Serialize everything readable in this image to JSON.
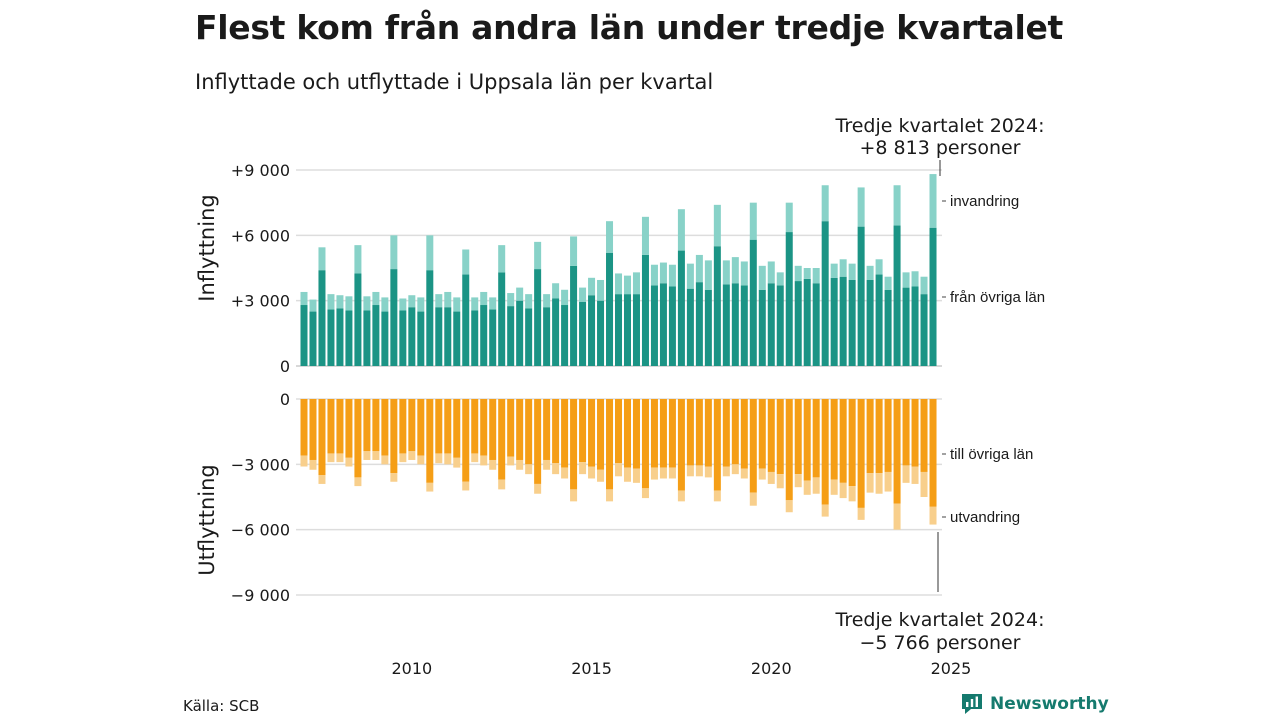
{
  "header": {
    "title": "Flest kom från andra län under tredje kvartalet",
    "subtitle": "Inflyttade och utflyttade i Uppsala län per kvartal"
  },
  "footer": {
    "source": "Källa: SCB",
    "brand": "Newsworthy"
  },
  "colors": {
    "in_domestic": "#1b9485",
    "in_immigration": "#88d2c8",
    "out_domestic": "#f59e16",
    "out_emigration": "#f8cf8c",
    "grid": "#dddddd",
    "brand": "#157a6e"
  },
  "chart_data": {
    "type": "bar",
    "stacked": true,
    "grid": true,
    "x_axis": {
      "ticks": [
        "2010",
        "2015",
        "2020",
        "2025"
      ],
      "range": [
        "2007 Q1",
        "2024 Q3"
      ]
    },
    "top_panel": {
      "ylabel": "Inflyttning",
      "ylim": [
        0,
        9000
      ],
      "yticks": [
        {
          "value": 0,
          "label": "0"
        },
        {
          "value": 3000,
          "label": "+3 000"
        },
        {
          "value": 6000,
          "label": "+6 000"
        },
        {
          "value": 9000,
          "label": "+9 000"
        }
      ],
      "series_labels": [
        "från övriga län",
        "invandring"
      ]
    },
    "bottom_panel": {
      "ylabel": "Utflyttning",
      "ylim": [
        -9000,
        0
      ],
      "yticks": [
        {
          "value": 0,
          "label": "0"
        },
        {
          "value": -3000,
          "label": "−3 000"
        },
        {
          "value": -6000,
          "label": "−6 000"
        },
        {
          "value": -9000,
          "label": "−9 000"
        }
      ],
      "series_labels": [
        "till övriga län",
        "utvandring"
      ]
    },
    "annotations": {
      "top_line1": "Tredje kvartalet 2024:",
      "top_line2": "+8 813 personer",
      "bottom_line1": "Tredje kvartalet 2024:",
      "bottom_line2": "−5 766 personer"
    },
    "quarters": [
      "2007 Q1",
      "2007 Q2",
      "2007 Q3",
      "2007 Q4",
      "2008 Q1",
      "2008 Q2",
      "2008 Q3",
      "2008 Q4",
      "2009 Q1",
      "2009 Q2",
      "2009 Q3",
      "2009 Q4",
      "2010 Q1",
      "2010 Q2",
      "2010 Q3",
      "2010 Q4",
      "2011 Q1",
      "2011 Q2",
      "2011 Q3",
      "2011 Q4",
      "2012 Q1",
      "2012 Q2",
      "2012 Q3",
      "2012 Q4",
      "2013 Q1",
      "2013 Q2",
      "2013 Q3",
      "2013 Q4",
      "2014 Q1",
      "2014 Q2",
      "2014 Q3",
      "2014 Q4",
      "2015 Q1",
      "2015 Q2",
      "2015 Q3",
      "2015 Q4",
      "2016 Q1",
      "2016 Q2",
      "2016 Q3",
      "2016 Q4",
      "2017 Q1",
      "2017 Q2",
      "2017 Q3",
      "2017 Q4",
      "2018 Q1",
      "2018 Q2",
      "2018 Q3",
      "2018 Q4",
      "2019 Q1",
      "2019 Q2",
      "2019 Q3",
      "2019 Q4",
      "2020 Q1",
      "2020 Q2",
      "2020 Q3",
      "2020 Q4",
      "2021 Q1",
      "2021 Q2",
      "2021 Q3",
      "2021 Q4",
      "2022 Q1",
      "2022 Q2",
      "2022 Q3",
      "2022 Q4",
      "2023 Q1",
      "2023 Q2",
      "2023 Q3",
      "2023 Q4",
      "2024 Q1",
      "2024 Q2",
      "2024 Q3"
    ],
    "series": [
      {
        "name": "från övriga län",
        "values": [
          2800,
          2500,
          4400,
          2600,
          2650,
          2550,
          4250,
          2550,
          2800,
          2500,
          4450,
          2550,
          2700,
          2500,
          4400,
          2700,
          2700,
          2500,
          4200,
          2550,
          2800,
          2600,
          4300,
          2750,
          3000,
          2650,
          4450,
          2700,
          3100,
          2800,
          4600,
          2950,
          3250,
          3000,
          5200,
          3300,
          3300,
          3300,
          5100,
          3700,
          3800,
          3650,
          5300,
          3550,
          3850,
          3500,
          5500,
          3750,
          3800,
          3700,
          5800,
          3500,
          3800,
          3700,
          6150,
          3900,
          4000,
          3800,
          6650,
          4050,
          4100,
          3950,
          6400,
          3950,
          4200,
          3500,
          6450,
          3600,
          3650,
          3300,
          6350
        ]
      },
      {
        "name": "invandring",
        "values": [
          600,
          550,
          1050,
          700,
          600,
          650,
          1300,
          650,
          600,
          650,
          1550,
          550,
          550,
          650,
          1600,
          600,
          700,
          650,
          1150,
          600,
          600,
          550,
          1250,
          600,
          600,
          650,
          1250,
          600,
          700,
          700,
          1350,
          650,
          800,
          950,
          1450,
          950,
          850,
          1000,
          1750,
          950,
          950,
          1000,
          1900,
          1150,
          1250,
          1350,
          1900,
          1100,
          1200,
          1100,
          1700,
          1100,
          1000,
          600,
          1350,
          700,
          500,
          700,
          1650,
          650,
          800,
          750,
          1800,
          650,
          700,
          600,
          1850,
          700,
          700,
          800,
          2463
        ]
      },
      {
        "name": "till övriga län",
        "values": [
          -2600,
          -2800,
          -3500,
          -2500,
          -2500,
          -2700,
          -3600,
          -2400,
          -2400,
          -2600,
          -3400,
          -2500,
          -2400,
          -2600,
          -3850,
          -2500,
          -2500,
          -2700,
          -3800,
          -2500,
          -2600,
          -2800,
          -3700,
          -2650,
          -2800,
          -3000,
          -3900,
          -2800,
          -2950,
          -3150,
          -4150,
          -2900,
          -3100,
          -3250,
          -4150,
          -2950,
          -3150,
          -3200,
          -4100,
          -3150,
          -3150,
          -3150,
          -4200,
          -3050,
          -3050,
          -3100,
          -4200,
          -3100,
          -3000,
          -3200,
          -4300,
          -3200,
          -3350,
          -3450,
          -4650,
          -3450,
          -3750,
          -3600,
          -4850,
          -3700,
          -3850,
          -4000,
          -5000,
          -3400,
          -3400,
          -3350,
          -4800,
          -3050,
          -3100,
          -3350,
          -4950
        ]
      },
      {
        "name": "utvandring",
        "values": [
          -500,
          -450,
          -400,
          -400,
          -400,
          -400,
          -400,
          -400,
          -400,
          -400,
          -400,
          -400,
          -400,
          -400,
          -400,
          -450,
          -500,
          -450,
          -400,
          -400,
          -450,
          -450,
          -450,
          -400,
          -450,
          -450,
          -450,
          -450,
          -500,
          -500,
          -550,
          -550,
          -550,
          -550,
          -550,
          -600,
          -650,
          -650,
          -450,
          -550,
          -500,
          -500,
          -500,
          -500,
          -500,
          -500,
          -500,
          -450,
          -450,
          -450,
          -600,
          -500,
          -550,
          -650,
          -550,
          -600,
          -650,
          -750,
          -550,
          -700,
          -700,
          -700,
          -550,
          -900,
          -950,
          -900,
          -1200,
          -800,
          -800,
          -1150,
          -816
        ]
      }
    ]
  }
}
